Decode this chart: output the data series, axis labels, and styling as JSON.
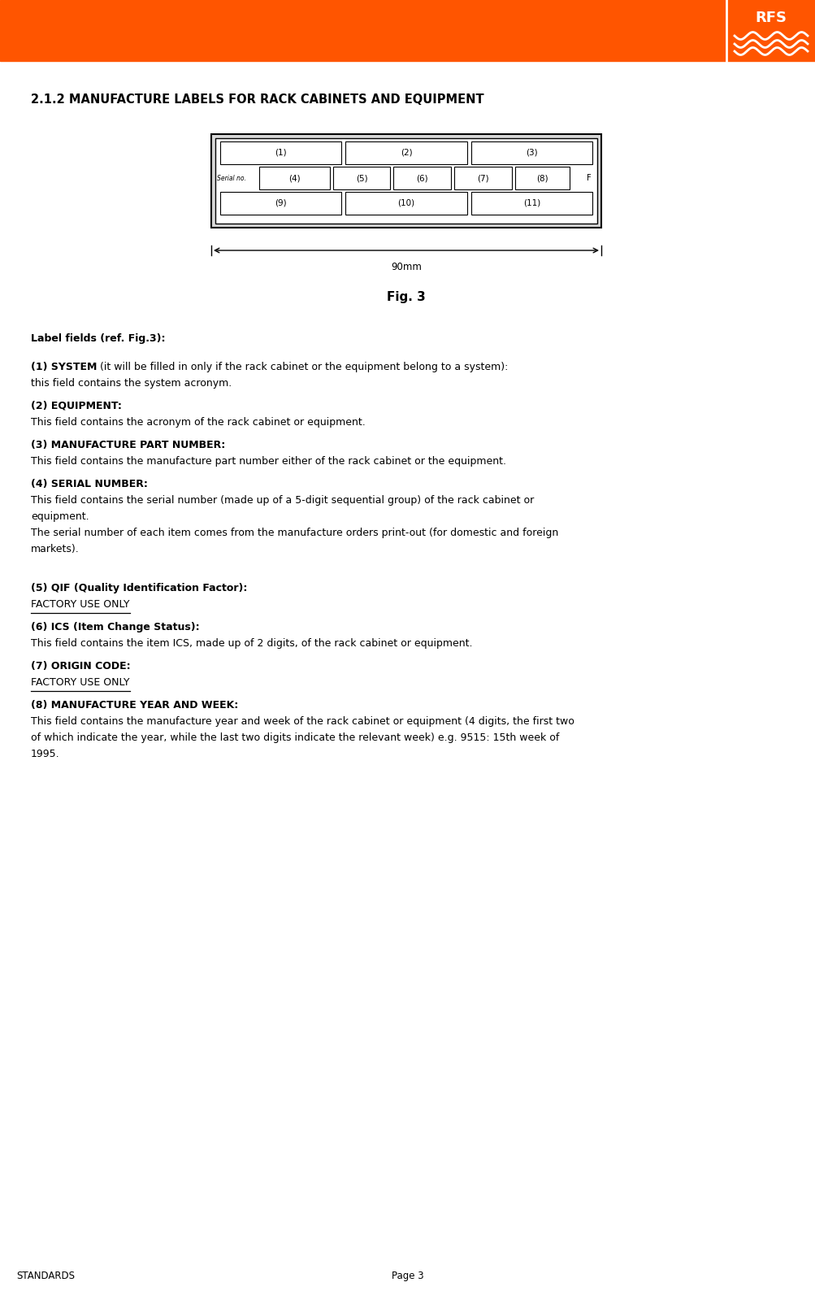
{
  "page_width": 10.04,
  "page_height": 16.04,
  "dpi": 100,
  "bg_color": "#ffffff",
  "header_color": "#ff5500",
  "title": "2.1.2 MANUFACTURE LABELS FOR RACK CABINETS AND EQUIPMENT",
  "fig_caption": "Fig. 3",
  "dim_label": "90mm",
  "label_intro": "Label fields (ref. Fig.3):",
  "items": [
    {
      "bold_part": "(1) SYSTEM",
      "normal_part": " (it will be filled in only if the rack cabinet or the equipment belong to a system):",
      "continuation": "this field contains the system acronym.",
      "cont_lines": 1
    },
    {
      "bold_part": "(2) EQUIPMENT:",
      "normal_part": "",
      "continuation": "This field contains the acronym of the rack cabinet or equipment.",
      "cont_lines": 1
    },
    {
      "bold_part": "(3) MANUFACTURE PART NUMBER:",
      "normal_part": "",
      "continuation": "This field contains the manufacture part number either of the rack cabinet or the equipment.",
      "cont_lines": 1
    },
    {
      "bold_part": "(4) SERIAL NUMBER:",
      "normal_part": "",
      "continuation": "This field contains the serial number (made up of a 5-digit sequential group) of the rack cabinet or\nequipment.\nThe serial number of each item comes from the manufacture orders print-out (for domestic and foreign\nmarkets).",
      "cont_lines": 4,
      "extra_space_after": true
    },
    {
      "bold_part": "(5) QIF (Quality Identification Factor):",
      "normal_part": "",
      "continuation": "FACTORY USE ONLY",
      "underline_continuation": true,
      "cont_lines": 1
    },
    {
      "bold_part": "(6) ICS (Item Change Status):",
      "normal_part": "",
      "continuation": "This field contains the item ICS, made up of 2 digits, of the rack cabinet or equipment.",
      "cont_lines": 1
    },
    {
      "bold_part": "(7) ORIGIN CODE:",
      "normal_part": "",
      "continuation": "FACTORY USE ONLY",
      "underline_continuation": true,
      "cont_lines": 1
    },
    {
      "bold_part": "(8) MANUFACTURE YEAR AND WEEK:",
      "normal_part": "",
      "continuation": "This field contains the manufacture year and week of the rack cabinet or equipment (4 digits, the first two\nof which indicate the year, while the last two digits indicate the relevant week) e.g. 9515: 15th week of\n1995.",
      "cont_lines": 3
    }
  ],
  "footer_left": "STANDARDS",
  "footer_right": "Page 3"
}
